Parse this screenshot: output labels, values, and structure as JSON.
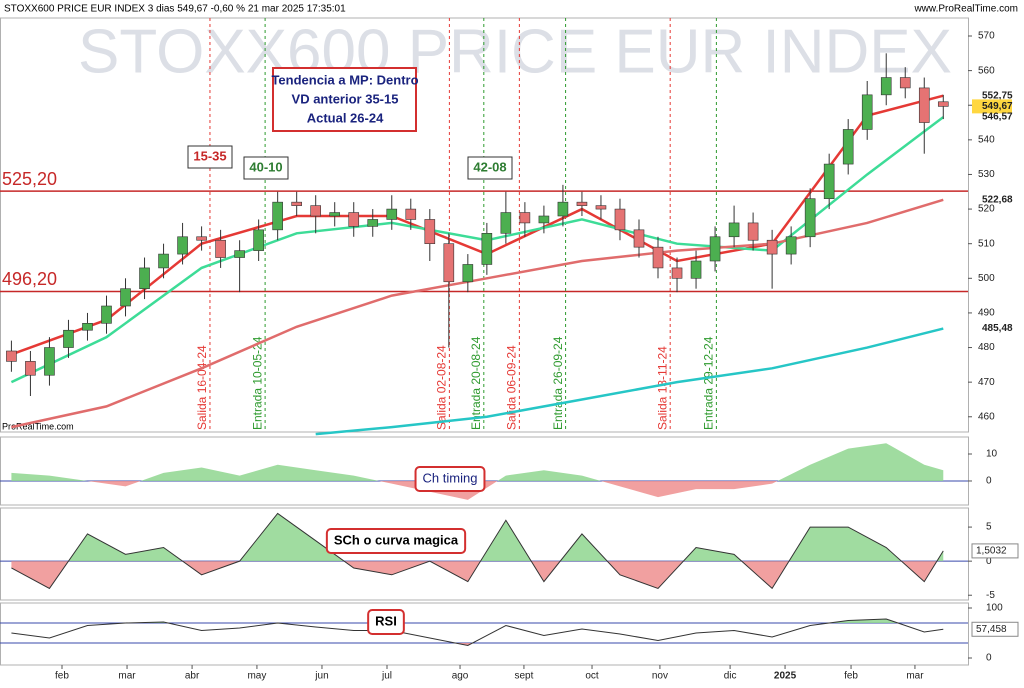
{
  "chart_data": {
    "type": "candlestick",
    "header": "STOXX600 PRICE EUR INDEX 3 dias 549,67 -0,60 % 21 mar 2025 17:35:01",
    "source": "www.ProRealTime.com",
    "watermark": "STOXX600 PRICE EUR INDEX",
    "credit": "ProRealTime.com",
    "info_box": [
      "Tendencia a MP: Dentro",
      "VD anterior 35-15",
      "Actual 26-24"
    ],
    "annotations": [
      "15-35",
      "40-10",
      "42-08"
    ],
    "xlim": [
      -0.6,
      50.3
    ],
    "xticks": [
      {
        "value": 2.66,
        "label": "feb"
      },
      {
        "value": 6.08,
        "label": "mar"
      },
      {
        "value": 9.5,
        "label": "abr"
      },
      {
        "value": 12.91,
        "label": "may"
      },
      {
        "value": 16.33,
        "label": "jun"
      },
      {
        "value": 19.75,
        "label": "jul"
      },
      {
        "value": 23.59,
        "label": "ago"
      },
      {
        "value": 26.95,
        "label": "sept"
      },
      {
        "value": 30.53,
        "label": "oct"
      },
      {
        "value": 34.1,
        "label": "nov"
      },
      {
        "value": 37.79,
        "label": "dic"
      },
      {
        "value": 40.68,
        "label": "2025"
      },
      {
        "value": 44.15,
        "label": "feb"
      },
      {
        "value": 47.51,
        "label": "mar"
      }
    ],
    "ylim": [
      455.6,
      575.2
    ],
    "yticks": [
      460,
      470,
      480,
      490,
      500,
      510,
      520,
      530,
      540,
      550,
      560,
      570
    ],
    "x": [
      0,
      1,
      2,
      3,
      4,
      5,
      6,
      7,
      8,
      9,
      10,
      11,
      12,
      13,
      14,
      15,
      16,
      17,
      18,
      19,
      20,
      21,
      22,
      23,
      24,
      25,
      26,
      27,
      28,
      29,
      30,
      31,
      32,
      33,
      34,
      35,
      36,
      37,
      38,
      39,
      40,
      41,
      42,
      43,
      44,
      45,
      46,
      47,
      48,
      49
    ],
    "open": [
      479,
      476,
      472,
      480,
      485,
      487,
      492,
      497,
      503,
      507,
      512,
      511,
      506,
      508,
      514,
      522,
      521,
      518,
      519,
      515,
      517,
      520,
      517,
      510,
      499,
      504,
      513,
      519,
      516,
      518,
      522,
      521,
      520,
      514,
      509,
      503,
      500,
      505,
      512,
      516,
      511,
      507,
      512,
      523,
      533,
      543,
      553,
      558,
      555,
      551
    ],
    "high": [
      482,
      479,
      483,
      488,
      490,
      495,
      500,
      506,
      510,
      516,
      515,
      514,
      511,
      517,
      525,
      525,
      524,
      522,
      522,
      520,
      524,
      523,
      520,
      513,
      507,
      516,
      525,
      522,
      521,
      527,
      525,
      524,
      523,
      517,
      512,
      506,
      508,
      515,
      521,
      519,
      514,
      515,
      526,
      536,
      546,
      557,
      565,
      561,
      558,
      553
    ],
    "low": [
      473,
      466,
      469,
      477,
      482,
      484,
      489,
      494,
      500,
      504,
      508,
      503,
      496,
      505,
      511,
      518,
      513,
      515,
      512,
      512,
      514,
      514,
      505,
      480,
      496,
      501,
      510,
      512,
      513,
      515,
      518,
      517,
      511,
      506,
      500,
      496,
      497,
      502,
      509,
      508,
      497,
      504,
      509,
      520,
      530,
      540,
      550,
      552,
      536,
      546
    ],
    "close": [
      476,
      472,
      480,
      485,
      487,
      492,
      497,
      503,
      507,
      512,
      511,
      506,
      508,
      514,
      522,
      521,
      518,
      519,
      515,
      517,
      520,
      517,
      510,
      499,
      504,
      513,
      519,
      516,
      518,
      522,
      521,
      520,
      514,
      509,
      503,
      500,
      505,
      512,
      516,
      511,
      507,
      512,
      523,
      533,
      543,
      553,
      558,
      555,
      545,
      549.67
    ],
    "up_color": "#4caf50",
    "down_color": "#e57373",
    "series": [
      {
        "color": "#e53935",
        "x": [
          0,
          5,
          10,
          15,
          20,
          25,
          30,
          35,
          40,
          45,
          49
        ],
        "values": [
          478,
          488,
          510,
          518,
          518,
          507,
          520,
          505,
          510,
          547,
          552.75
        ]
      },
      {
        "color": "#3ddc97",
        "x": [
          0,
          5,
          10,
          15,
          20,
          25,
          30,
          35,
          40,
          45,
          49
        ],
        "values": [
          470,
          483,
          503,
          513,
          516,
          511,
          517,
          510,
          508,
          530,
          546.57
        ]
      },
      {
        "color": "#e06c6c",
        "x": [
          0,
          5,
          10,
          15,
          20,
          25,
          30,
          35,
          40,
          45,
          49
        ],
        "values": [
          457,
          463,
          474,
          486,
          495,
          500,
          505,
          508,
          510,
          516,
          522.68
        ]
      },
      {
        "color": "#26c6c6",
        "x": [
          16,
          20,
          25,
          30,
          35,
          40,
          45,
          49
        ],
        "values": [
          455,
          457,
          460,
          465,
          470,
          474,
          480,
          485.48
        ]
      }
    ],
    "price_labels": [
      {
        "value": 552.75,
        "label": "552,75",
        "color": "#e53935"
      },
      {
        "value": 549.67,
        "label": "549,67",
        "color": "#000000"
      },
      {
        "value": 546.57,
        "label": "546,57",
        "color": "#3ddc97"
      },
      {
        "value": 522.68,
        "label": "522,68",
        "color": "#e06c6c"
      },
      {
        "value": 485.48,
        "label": "485,48",
        "color": "#26c6c6"
      }
    ],
    "levels": [
      {
        "value": 525.2,
        "label": "525,20"
      },
      {
        "value": 496.2,
        "label": "496,20"
      }
    ],
    "signals": [
      {
        "x": 10.44,
        "label": "Salida 16-04-24",
        "color": "#e53935"
      },
      {
        "x": 13.34,
        "label": "Entrada 10-05-24",
        "color": "#2e9a2e"
      },
      {
        "x": 23.03,
        "label": "Salida 02-08-24",
        "color": "#e53935"
      },
      {
        "x": 24.84,
        "label": "Entrada 20-08-24",
        "color": "#2e9a2e"
      },
      {
        "x": 26.71,
        "label": "Salida 06-09-24",
        "color": "#e53935"
      },
      {
        "x": 29.14,
        "label": "Entrada 26-09-24",
        "color": "#2e9a2e"
      },
      {
        "x": 34.64,
        "label": "Salida 13-11-24",
        "color": "#e53935"
      },
      {
        "x": 37.07,
        "label": "Entrada 29-12-24",
        "color": "#2e9a2e"
      }
    ],
    "panels": [
      {
        "name": "Ch timing",
        "ylim": [
          -8.9,
          16.3
        ],
        "yticks": [
          10,
          0
        ],
        "fill_levels": [
          0,
          0
        ],
        "ref_levels": [
          0
        ],
        "x": [
          0,
          2,
          4,
          6,
          8,
          10,
          12,
          14,
          16,
          18,
          20,
          22,
          24,
          26,
          28,
          30,
          32,
          34,
          36,
          38,
          40,
          42,
          44,
          46,
          48,
          49
        ],
        "values": [
          3,
          2,
          0,
          -2,
          3,
          5,
          2,
          6,
          4,
          2,
          -1,
          -4,
          -7,
          2,
          4,
          2,
          -2,
          -6,
          -3,
          -3,
          -1,
          6,
          12,
          14,
          6,
          4
        ]
      },
      {
        "name": "SCh o curva magica",
        "ylim": [
          -5.7,
          7.8
        ],
        "yticks": [
          5,
          0,
          -5
        ],
        "fill_levels": [
          0,
          0
        ],
        "ref_levels": [
          0
        ],
        "last_label": "1,5032",
        "x": [
          0,
          2,
          4,
          6,
          8,
          10,
          12,
          14,
          16,
          18,
          20,
          22,
          24,
          26,
          28,
          30,
          32,
          34,
          36,
          38,
          40,
          42,
          44,
          46,
          48,
          49
        ],
        "values": [
          -1,
          -4,
          4,
          1,
          2,
          -2,
          0,
          7,
          3,
          -1,
          -2,
          0,
          -3,
          6,
          -3,
          4,
          -2,
          -4,
          2,
          1,
          -4,
          5,
          5,
          2,
          -3,
          1.5032
        ]
      },
      {
        "name": "RSI",
        "ylim": [
          -14,
          110
        ],
        "yticks": [
          100,
          0
        ],
        "fill_levels": [
          70,
          30
        ],
        "ref_levels": [
          70,
          30
        ],
        "last_label": "57,458",
        "x": [
          0,
          2,
          4,
          6,
          8,
          10,
          12,
          14,
          16,
          18,
          20,
          22,
          24,
          26,
          28,
          30,
          32,
          34,
          36,
          38,
          40,
          42,
          44,
          46,
          48,
          49
        ],
        "values": [
          50,
          40,
          65,
          70,
          72,
          55,
          60,
          70,
          62,
          55,
          55,
          40,
          25,
          65,
          45,
          58,
          48,
          35,
          50,
          55,
          42,
          65,
          75,
          78,
          52,
          57.458
        ]
      }
    ]
  }
}
